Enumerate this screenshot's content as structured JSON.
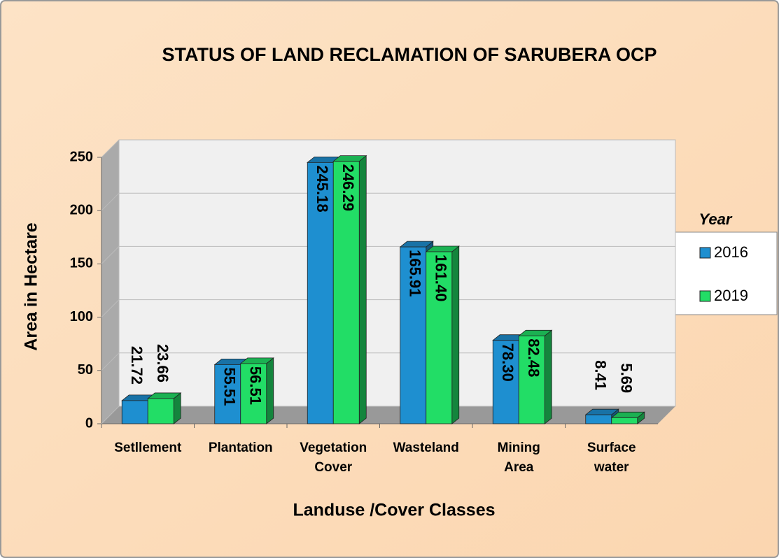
{
  "chart_data": {
    "type": "bar3d",
    "title": "STATUS OF LAND RECLAMATION OF SARUBERA OCP",
    "x_label": "Landuse /Cover Classes",
    "y_label": "Area in Hectare",
    "legend_title": "Year",
    "legend_position": "right",
    "categories": [
      "Setllement",
      "Plantation",
      "Vegetation Cover",
      "Wasteland",
      "Mining Area",
      "Surface water"
    ],
    "series": [
      {
        "name": "2016",
        "color": "#1e8fd0",
        "values": [
          21.72,
          55.51,
          245.18,
          165.91,
          78.3,
          8.41
        ],
        "value_labels": [
          "21.72",
          "55.51",
          "245.18",
          "165.91",
          "78.30",
          "8.41"
        ]
      },
      {
        "name": "2019",
        "color": "#22dd66",
        "values": [
          23.66,
          56.51,
          246.29,
          161.4,
          82.48,
          5.69
        ],
        "value_labels": [
          "23.66",
          "56.51",
          "246.29",
          "161.40",
          "82.48",
          "5.69"
        ]
      }
    ],
    "ylim": [
      0,
      250
    ],
    "yticks": [
      0,
      50,
      100,
      150,
      200,
      250
    ],
    "grid": true
  }
}
